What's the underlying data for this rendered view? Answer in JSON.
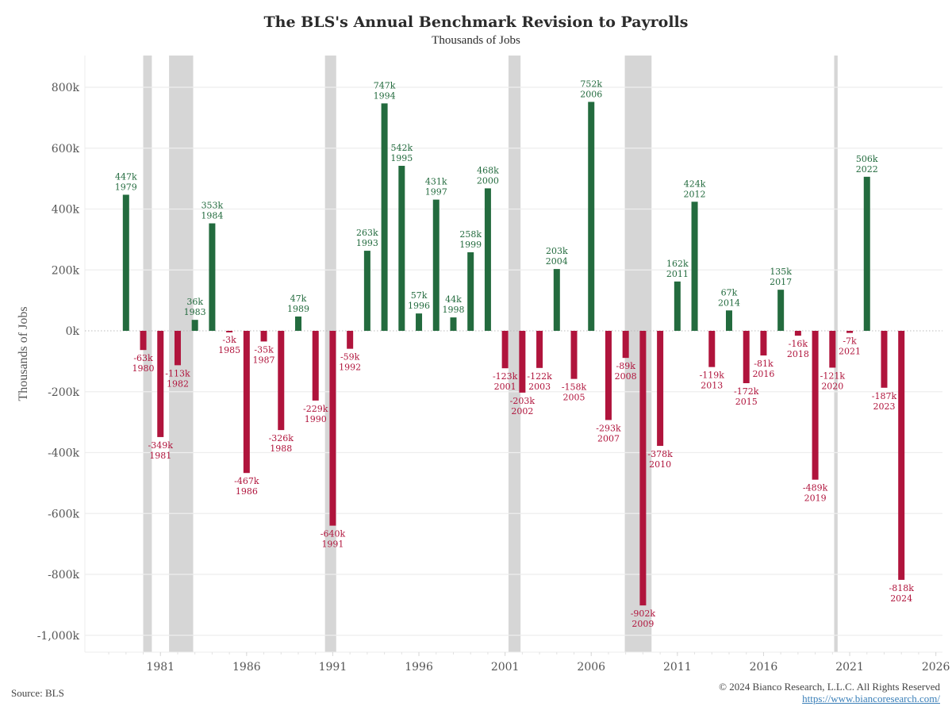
{
  "chart_data": {
    "type": "bar",
    "title": "The BLS's Annual Benchmark Revision to Payrolls",
    "subtitle": "Thousands of Jobs",
    "xlabel": "",
    "ylabel": "Thousands of Jobs",
    "ylim": [
      -1050,
      900
    ],
    "xlim": [
      1977.6,
      2026.1
    ],
    "grid": true,
    "yticks": [
      800,
      600,
      400,
      200,
      0,
      -200,
      -400,
      -600,
      -800,
      -1000
    ],
    "ytick_labels": [
      "800k",
      "600k",
      "400k",
      "200k",
      "0k",
      "-200k",
      "-400k",
      "-600k",
      "-800k",
      "-1,000k"
    ],
    "xticks": [
      1981,
      1986,
      1991,
      1996,
      2001,
      2006,
      2011,
      2016,
      2021,
      2026
    ],
    "xtick_labels": [
      "1981",
      "1986",
      "1991",
      "1996",
      "2001",
      "2006",
      "2011",
      "2016",
      "2021",
      "2026"
    ],
    "positive_color": "#236b3e",
    "negative_color": "#b0143c",
    "recession_color": "#d6d6d6",
    "recessions": [
      [
        1980.0,
        1980.5
      ],
      [
        1981.5,
        1982.9
      ],
      [
        1990.55,
        1991.2
      ],
      [
        2001.2,
        2001.9
      ],
      [
        2007.95,
        2009.5
      ],
      [
        2020.1,
        2020.3
      ]
    ],
    "categories": [
      "1979",
      "1980",
      "1981",
      "1982",
      "1983",
      "1984",
      "1985",
      "1986",
      "1987",
      "1988",
      "1989",
      "1990",
      "1991",
      "1992",
      "1993",
      "1994",
      "1995",
      "1996",
      "1997",
      "1998",
      "1999",
      "2000",
      "2001",
      "2002",
      "2003",
      "2004",
      "2005",
      "2006",
      "2007",
      "2008",
      "2009",
      "2010",
      "2011",
      "2012",
      "2013",
      "2014",
      "2015",
      "2016",
      "2017",
      "2018",
      "2019",
      "2020",
      "2021",
      "2022",
      "2023",
      "2024"
    ],
    "values": [
      447,
      -63,
      -349,
      -113,
      36,
      353,
      -3,
      -467,
      -35,
      -326,
      47,
      -229,
      -640,
      -59,
      263,
      747,
      542,
      57,
      431,
      44,
      258,
      468,
      -123,
      -203,
      -122,
      203,
      -158,
      752,
      -293,
      -89,
      -902,
      -378,
      162,
      424,
      -119,
      67,
      -172,
      -81,
      135,
      -16,
      -489,
      -121,
      -7,
      506,
      -187,
      -818
    ],
    "value_labels": [
      "447k",
      "-63k",
      "-349k",
      "-113k",
      "36k",
      "353k",
      "-3k",
      "-467k",
      "-35k",
      "-326k",
      "47k",
      "-229k",
      "-640k",
      "-59k",
      "263k",
      "747k",
      "542k",
      "57k",
      "431k",
      "44k",
      "258k",
      "468k",
      "-123k",
      "-203k",
      "-122k",
      "203k",
      "-158k",
      "752k",
      "-293k",
      "-89k",
      "-902k",
      "-378k",
      "162k",
      "424k",
      "-119k",
      "67k",
      "-172k",
      "-81k",
      "135k",
      "-16k",
      "-489k",
      "-121k",
      "-7k",
      "506k",
      "-187k",
      "-818k"
    ]
  },
  "footer": {
    "source": "Source: BLS",
    "copyright": "© 2024 Bianco Research, L.L.C. All Rights Reserved",
    "url": "https://www.biancoresearch.com/"
  }
}
